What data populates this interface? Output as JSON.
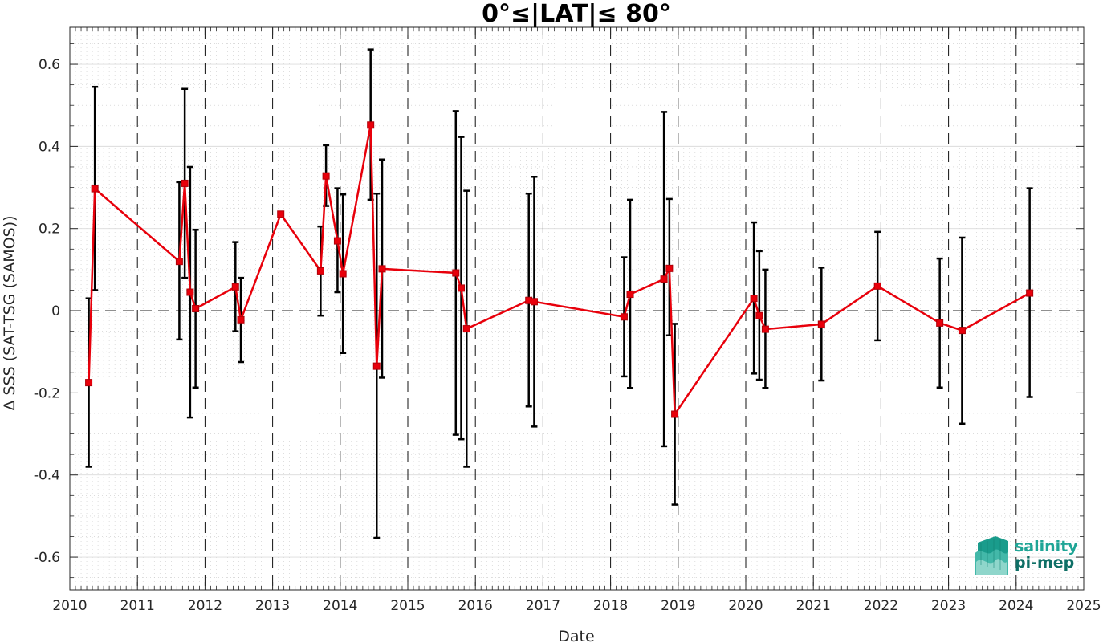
{
  "chart_data": {
    "type": "line",
    "title": "0°≤|LAT|≤ 80°",
    "xlabel": "Date",
    "ylabel": "Δ SSS (SAT-TSG (SAMOS))",
    "xlim": [
      2010,
      2025
    ],
    "ylim": [
      -0.68,
      0.69
    ],
    "xticks": [
      "2010",
      "2011",
      "2012",
      "2013",
      "2014",
      "2015",
      "2016",
      "2017",
      "2018",
      "2019",
      "2020",
      "2021",
      "2022",
      "2023",
      "2024",
      "2025"
    ],
    "yticks": [
      {
        "v": -0.6,
        "label": "-0.6"
      },
      {
        "v": -0.4,
        "label": "-0.4"
      },
      {
        "v": -0.2,
        "label": "-0.2"
      },
      {
        "v": 0,
        "label": "0"
      },
      {
        "v": 0.2,
        "label": "0.2"
      },
      {
        "v": 0.4,
        "label": "0.4"
      },
      {
        "v": 0.6,
        "label": "0.6"
      }
    ],
    "grid": true,
    "reference_line": 0,
    "line_color": "#e8000b",
    "errorbar_color": "#000000",
    "series": [
      {
        "points": [
          {
            "x": 2010.28,
            "y": -0.175,
            "low": -0.38,
            "high": 0.03
          },
          {
            "x": 2010.37,
            "y": 0.297,
            "low": 0.05,
            "high": 0.545
          },
          {
            "x": 2011.62,
            "y": 0.12,
            "low": -0.07,
            "high": 0.313
          },
          {
            "x": 2011.7,
            "y": 0.31,
            "low": 0.08,
            "high": 0.54
          },
          {
            "x": 2011.78,
            "y": 0.045,
            "low": -0.26,
            "high": 0.35
          },
          {
            "x": 2011.86,
            "y": 0.005,
            "low": -0.187,
            "high": 0.197
          },
          {
            "x": 2012.45,
            "y": 0.058,
            "low": -0.05,
            "high": 0.167
          },
          {
            "x": 2012.53,
            "y": -0.022,
            "low": -0.125,
            "high": 0.08
          },
          {
            "x": 2013.12,
            "y": 0.235,
            "low": 0.235,
            "high": 0.235
          },
          {
            "x": 2013.71,
            "y": 0.097,
            "low": -0.012,
            "high": 0.205
          },
          {
            "x": 2013.79,
            "y": 0.328,
            "low": 0.255,
            "high": 0.403
          },
          {
            "x": 2013.96,
            "y": 0.17,
            "low": 0.045,
            "high": 0.298
          },
          {
            "x": 2014.04,
            "y": 0.09,
            "low": -0.103,
            "high": 0.283
          },
          {
            "x": 2014.45,
            "y": 0.452,
            "low": 0.27,
            "high": 0.636
          },
          {
            "x": 2014.54,
            "y": -0.135,
            "low": -0.553,
            "high": 0.285
          },
          {
            "x": 2014.62,
            "y": 0.102,
            "low": -0.163,
            "high": 0.368
          },
          {
            "x": 2015.71,
            "y": 0.092,
            "low": -0.302,
            "high": 0.486
          },
          {
            "x": 2015.79,
            "y": 0.055,
            "low": -0.313,
            "high": 0.423
          },
          {
            "x": 2015.87,
            "y": -0.044,
            "low": -0.38,
            "high": 0.292
          },
          {
            "x": 2016.79,
            "y": 0.025,
            "low": -0.233,
            "high": 0.285
          },
          {
            "x": 2016.87,
            "y": 0.022,
            "low": -0.282,
            "high": 0.326
          },
          {
            "x": 2018.2,
            "y": -0.015,
            "low": -0.16,
            "high": 0.13
          },
          {
            "x": 2018.29,
            "y": 0.04,
            "low": -0.188,
            "high": 0.27
          },
          {
            "x": 2018.79,
            "y": 0.077,
            "low": -0.33,
            "high": 0.484
          },
          {
            "x": 2018.87,
            "y": 0.103,
            "low": -0.06,
            "high": 0.272
          },
          {
            "x": 2018.95,
            "y": -0.252,
            "low": -0.472,
            "high": -0.032
          },
          {
            "x": 2020.12,
            "y": 0.03,
            "low": -0.153,
            "high": 0.215
          },
          {
            "x": 2020.2,
            "y": -0.012,
            "low": -0.168,
            "high": 0.145
          },
          {
            "x": 2020.29,
            "y": -0.045,
            "low": -0.188,
            "high": 0.1
          },
          {
            "x": 2021.12,
            "y": -0.033,
            "low": -0.17,
            "high": 0.105
          },
          {
            "x": 2021.95,
            "y": 0.06,
            "low": -0.072,
            "high": 0.192
          },
          {
            "x": 2022.87,
            "y": -0.03,
            "low": -0.187,
            "high": 0.127
          },
          {
            "x": 2023.2,
            "y": -0.048,
            "low": -0.275,
            "high": 0.178
          },
          {
            "x": 2024.2,
            "y": 0.043,
            "low": -0.21,
            "high": 0.298
          }
        ]
      }
    ]
  },
  "logo": {
    "line1": "salinity",
    "line2": "pi-mep",
    "color": "#1fa596"
  }
}
